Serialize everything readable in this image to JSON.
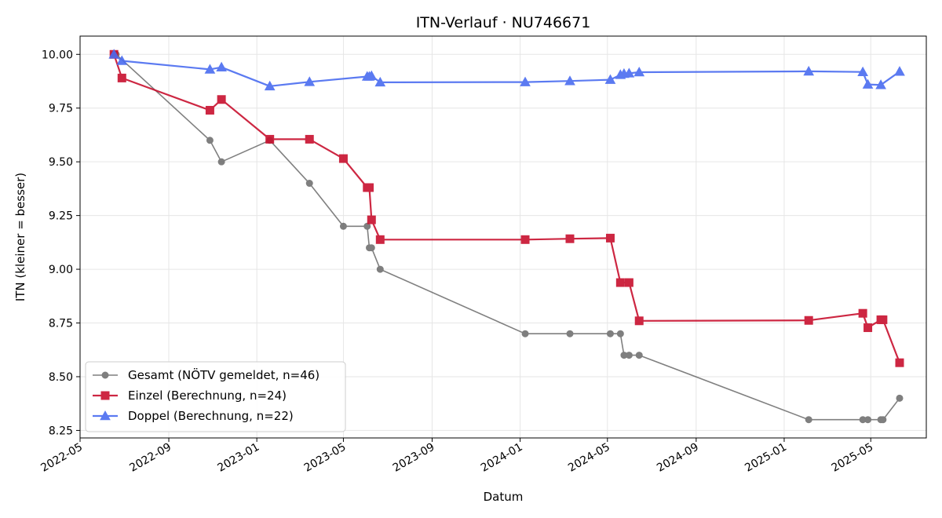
{
  "chart_data": {
    "type": "line",
    "title": "ITN-Verlauf · NU746671",
    "xlabel": "Datum",
    "ylabel": "ITN  (kleiner = besser)",
    "x_type": "date",
    "xlim": [
      "2022-05-01",
      "2025-07-17"
    ],
    "ylim": [
      8.215,
      10.085
    ],
    "x_ticks": [
      "2022-05-01",
      "2022-09-01",
      "2023-01-01",
      "2023-05-01",
      "2023-09-01",
      "2024-01-01",
      "2024-05-01",
      "2024-09-01",
      "2025-01-01",
      "2025-05-01"
    ],
    "x_tick_labels": [
      "2022-05",
      "2022-09",
      "2023-01",
      "2023-05",
      "2023-09",
      "2024-01",
      "2024-05",
      "2024-09",
      "2025-01",
      "2025-05"
    ],
    "y_ticks": [
      8.25,
      8.5,
      8.75,
      9.0,
      9.25,
      9.5,
      9.75,
      10.0
    ],
    "y_tick_labels": [
      "8.25",
      "8.50",
      "8.75",
      "9.00",
      "9.25",
      "9.50",
      "9.75",
      "10.00"
    ],
    "grid": true,
    "legend_position": "lower-left",
    "series": [
      {
        "name": "Gesamt (NÖTV gemeldet, n=46)",
        "color": "#555555",
        "marker": "circle",
        "points": [
          {
            "x": "2022-06-17",
            "y": 10.0
          },
          {
            "x": "2022-06-20",
            "y": 10.0
          },
          {
            "x": "2022-10-28",
            "y": 9.6
          },
          {
            "x": "2022-11-13",
            "y": 9.5
          },
          {
            "x": "2023-01-19",
            "y": 9.6
          },
          {
            "x": "2023-03-15",
            "y": 9.4
          },
          {
            "x": "2023-05-01",
            "y": 9.2
          },
          {
            "x": "2023-06-03",
            "y": 9.2
          },
          {
            "x": "2023-06-06",
            "y": 9.1
          },
          {
            "x": "2023-06-09",
            "y": 9.1
          },
          {
            "x": "2023-06-21",
            "y": 9.0
          },
          {
            "x": "2024-01-08",
            "y": 8.7
          },
          {
            "x": "2024-03-10",
            "y": 8.7
          },
          {
            "x": "2024-05-05",
            "y": 8.7
          },
          {
            "x": "2024-05-19",
            "y": 8.7
          },
          {
            "x": "2024-05-24",
            "y": 8.6
          },
          {
            "x": "2024-05-31",
            "y": 8.6
          },
          {
            "x": "2024-06-14",
            "y": 8.6
          },
          {
            "x": "2025-02-04",
            "y": 8.3
          },
          {
            "x": "2025-04-20",
            "y": 8.3
          },
          {
            "x": "2025-04-27",
            "y": 8.3
          },
          {
            "x": "2025-05-15",
            "y": 8.3
          },
          {
            "x": "2025-05-18",
            "y": 8.3
          },
          {
            "x": "2025-06-10",
            "y": 8.4
          }
        ]
      },
      {
        "name": "Einzel (Berechnung, n=24)",
        "color": "#c8102e",
        "marker": "square",
        "points": [
          {
            "x": "2022-06-17",
            "y": 10.0
          },
          {
            "x": "2022-06-28",
            "y": 9.89
          },
          {
            "x": "2022-10-28",
            "y": 9.74
          },
          {
            "x": "2022-11-13",
            "y": 9.79
          },
          {
            "x": "2023-01-19",
            "y": 9.605
          },
          {
            "x": "2023-03-15",
            "y": 9.605
          },
          {
            "x": "2023-05-01",
            "y": 9.515
          },
          {
            "x": "2023-06-03",
            "y": 9.38
          },
          {
            "x": "2023-06-06",
            "y": 9.38
          },
          {
            "x": "2023-06-09",
            "y": 9.23
          },
          {
            "x": "2023-06-21",
            "y": 9.138
          },
          {
            "x": "2024-01-08",
            "y": 9.138
          },
          {
            "x": "2024-03-10",
            "y": 9.142
          },
          {
            "x": "2024-05-05",
            "y": 9.145
          },
          {
            "x": "2024-05-19",
            "y": 8.938
          },
          {
            "x": "2024-05-31",
            "y": 8.938
          },
          {
            "x": "2024-06-14",
            "y": 8.76
          },
          {
            "x": "2025-02-04",
            "y": 8.762
          },
          {
            "x": "2025-04-20",
            "y": 8.795
          },
          {
            "x": "2025-04-27",
            "y": 8.728
          },
          {
            "x": "2025-05-15",
            "y": 8.765
          },
          {
            "x": "2025-05-18",
            "y": 8.765
          },
          {
            "x": "2025-06-10",
            "y": 8.565
          }
        ]
      },
      {
        "name": "Doppel (Berechnung, n=22)",
        "color": "#4a6cf0",
        "marker": "triangle",
        "points": [
          {
            "x": "2022-06-17",
            "y": 10.0
          },
          {
            "x": "2022-06-28",
            "y": 9.97
          },
          {
            "x": "2022-10-28",
            "y": 9.93
          },
          {
            "x": "2022-11-13",
            "y": 9.94
          },
          {
            "x": "2023-01-19",
            "y": 9.852
          },
          {
            "x": "2023-03-15",
            "y": 9.872
          },
          {
            "x": "2023-06-03",
            "y": 9.897
          },
          {
            "x": "2023-06-06",
            "y": 9.897
          },
          {
            "x": "2023-06-09",
            "y": 9.9
          },
          {
            "x": "2023-06-21",
            "y": 9.87
          },
          {
            "x": "2024-01-08",
            "y": 9.871
          },
          {
            "x": "2024-03-10",
            "y": 9.876
          },
          {
            "x": "2024-05-05",
            "y": 9.882
          },
          {
            "x": "2024-05-19",
            "y": 9.905
          },
          {
            "x": "2024-05-24",
            "y": 9.91
          },
          {
            "x": "2024-05-31",
            "y": 9.912
          },
          {
            "x": "2024-06-14",
            "y": 9.917
          },
          {
            "x": "2025-02-04",
            "y": 9.921
          },
          {
            "x": "2025-04-20",
            "y": 9.918
          },
          {
            "x": "2025-04-27",
            "y": 9.86
          },
          {
            "x": "2025-05-15",
            "y": 9.858
          },
          {
            "x": "2025-06-10",
            "y": 9.92
          }
        ]
      }
    ]
  }
}
